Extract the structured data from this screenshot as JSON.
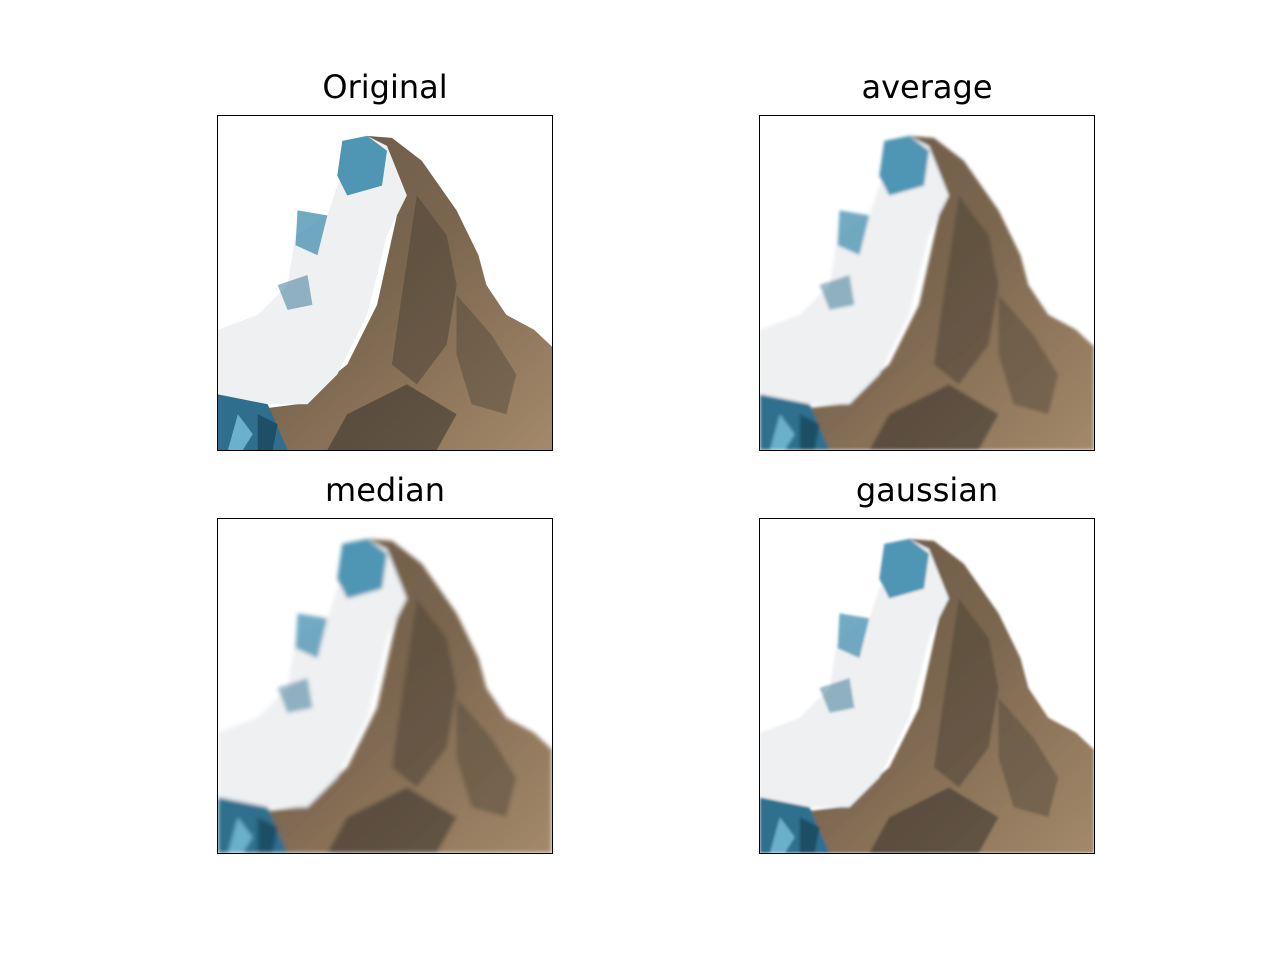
{
  "panels": [
    {
      "title": "Original",
      "filter": "none"
    },
    {
      "title": "average",
      "filter": "blur-box"
    },
    {
      "title": "median",
      "filter": "blur-median"
    },
    {
      "title": "gaussian",
      "filter": "blur-gauss"
    }
  ],
  "image": {
    "subject": "mountain-peak-icon",
    "colors": {
      "rock": "#8b7358",
      "rock_dark": "#4e4437",
      "snow": "#eef0f2",
      "ice": "#4f95b4",
      "ice_dark": "#2f6f8d",
      "shadow": "#2d2a26"
    }
  }
}
